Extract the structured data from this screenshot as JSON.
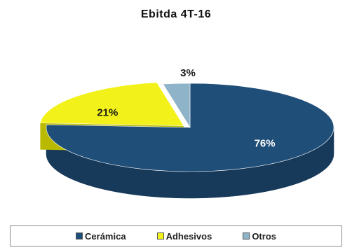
{
  "chart_data": {
    "type": "pie",
    "title": "Ebitda 4T-16",
    "slices": [
      {
        "name": "Cerámica",
        "value": 76,
        "label": "76%",
        "color": "#1f4e79",
        "side_color": "#17395a",
        "label_color": "#ffffff"
      },
      {
        "name": "Adhesivos",
        "value": 21,
        "label": "21%",
        "color": "#f2f21a",
        "side_color": "#b9b900",
        "label_color": "#1a1a1a"
      },
      {
        "name": "Otros",
        "value": 3,
        "label": "3%",
        "color": "#8fb3c9",
        "side_color": "#6b8ea6",
        "label_color": "#1a1a1a"
      }
    ],
    "style": "3d-tilted",
    "legend_position": "bottom"
  }
}
